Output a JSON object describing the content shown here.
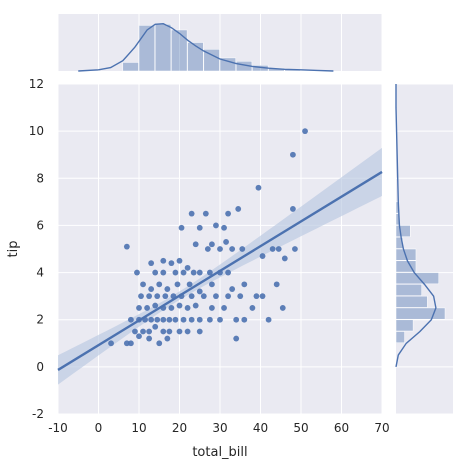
{
  "chart_data": {
    "type": "scatter",
    "style": "seaborn-darkgrid-jointplot-regression",
    "xlabel": "total_bill",
    "ylabel": "tip",
    "xlim": [
      -10,
      70
    ],
    "ylim": [
      -2,
      12
    ],
    "xticks": [
      -10,
      0,
      10,
      20,
      30,
      40,
      50,
      60,
      70
    ],
    "yticks": [
      -2,
      0,
      2,
      4,
      6,
      8,
      10,
      12
    ],
    "grid": true,
    "legend": "none",
    "colors": {
      "points": "#4c72b0",
      "line": "#4c72b0",
      "background": "#eaeaf2",
      "grid": "#ffffff",
      "band": "#b9c7e1"
    },
    "regression": {
      "slope": 0.105,
      "intercept": 0.92,
      "ci_halfwidth_at_mean": 0.18,
      "x_mean": 19.8
    },
    "points": [
      [
        51,
        10
      ],
      [
        48,
        9
      ],
      [
        39.5,
        7.6
      ],
      [
        48,
        6.7
      ],
      [
        32,
        6.5
      ],
      [
        23,
        6.5
      ],
      [
        34.5,
        6.7
      ],
      [
        26.5,
        6.5
      ],
      [
        25,
        5.9
      ],
      [
        29,
        6
      ],
      [
        31,
        5.9
      ],
      [
        20.5,
        5.9
      ],
      [
        24,
        5.2
      ],
      [
        28,
        5.2
      ],
      [
        31.5,
        5.3
      ],
      [
        7,
        5.1
      ],
      [
        13,
        4.4
      ],
      [
        16,
        4.5
      ],
      [
        18,
        4.4
      ],
      [
        20,
        4.5
      ],
      [
        22,
        4.2
      ],
      [
        27,
        5
      ],
      [
        30,
        5
      ],
      [
        33,
        5
      ],
      [
        35.5,
        5
      ],
      [
        40.5,
        4.7
      ],
      [
        43,
        5
      ],
      [
        44.5,
        5
      ],
      [
        48.5,
        5
      ],
      [
        46,
        4.6
      ],
      [
        9.5,
        4
      ],
      [
        14,
        4
      ],
      [
        16,
        4
      ],
      [
        19,
        4
      ],
      [
        21,
        4
      ],
      [
        23.5,
        4
      ],
      [
        25,
        4
      ],
      [
        27.5,
        4
      ],
      [
        30,
        4
      ],
      [
        32,
        4
      ],
      [
        11,
        3.5
      ],
      [
        13,
        3.3
      ],
      [
        15,
        3.5
      ],
      [
        17,
        3.3
      ],
      [
        19.5,
        3.5
      ],
      [
        22.5,
        3.5
      ],
      [
        25,
        3.2
      ],
      [
        28,
        3.5
      ],
      [
        33,
        3.3
      ],
      [
        36,
        3.5
      ],
      [
        44,
        3.5
      ],
      [
        10.5,
        3
      ],
      [
        12.5,
        3
      ],
      [
        14.5,
        3
      ],
      [
        16.5,
        3
      ],
      [
        18.5,
        3
      ],
      [
        20.5,
        3
      ],
      [
        23,
        3
      ],
      [
        26,
        3
      ],
      [
        29,
        3
      ],
      [
        32,
        3
      ],
      [
        35,
        3
      ],
      [
        39,
        3
      ],
      [
        40.5,
        3
      ],
      [
        10,
        2.5
      ],
      [
        12,
        2.5
      ],
      [
        14,
        2.6
      ],
      [
        16,
        2.5
      ],
      [
        18,
        2.5
      ],
      [
        20,
        2.6
      ],
      [
        22,
        2.5
      ],
      [
        24,
        2.6
      ],
      [
        28,
        2.5
      ],
      [
        31,
        2.5
      ],
      [
        38,
        2.5
      ],
      [
        8,
        2
      ],
      [
        10,
        2
      ],
      [
        11.5,
        2
      ],
      [
        13,
        2
      ],
      [
        14.5,
        2
      ],
      [
        16,
        2
      ],
      [
        17.5,
        2
      ],
      [
        19,
        2
      ],
      [
        21,
        2
      ],
      [
        23,
        2
      ],
      [
        25,
        2
      ],
      [
        27.5,
        2
      ],
      [
        30,
        2
      ],
      [
        34,
        2
      ],
      [
        36,
        2
      ],
      [
        42,
        2
      ],
      [
        9,
        1.5
      ],
      [
        11,
        1.5
      ],
      [
        12.5,
        1.5
      ],
      [
        14,
        1.7
      ],
      [
        16,
        1.5
      ],
      [
        17.5,
        1.5
      ],
      [
        20,
        1.5
      ],
      [
        22,
        1.5
      ],
      [
        25,
        1.5
      ],
      [
        7,
        1
      ],
      [
        8,
        1
      ],
      [
        3.1,
        1
      ],
      [
        10,
        1.3
      ],
      [
        12.5,
        1.2
      ],
      [
        15,
        1
      ],
      [
        17,
        1.2
      ],
      [
        34,
        1.2
      ],
      [
        45.5,
        2.5
      ]
    ],
    "marginal_x": {
      "bins": [
        [
          6,
          10,
          0.15
        ],
        [
          10,
          14,
          0.8
        ],
        [
          14,
          18,
          0.82
        ],
        [
          18,
          22,
          0.72
        ],
        [
          22,
          26,
          0.5
        ],
        [
          26,
          30,
          0.38
        ],
        [
          30,
          34,
          0.23
        ],
        [
          34,
          38,
          0.17
        ],
        [
          38,
          42,
          0.1
        ],
        [
          42,
          46,
          0.05
        ],
        [
          46,
          50,
          0.03
        ],
        [
          50,
          54,
          0.01
        ]
      ],
      "kde": [
        [
          -5,
          0.0
        ],
        [
          0,
          0.02
        ],
        [
          3,
          0.06
        ],
        [
          6,
          0.18
        ],
        [
          9,
          0.42
        ],
        [
          12,
          0.72
        ],
        [
          14,
          0.82
        ],
        [
          16,
          0.83
        ],
        [
          18,
          0.76
        ],
        [
          20,
          0.66
        ],
        [
          22,
          0.54
        ],
        [
          24,
          0.44
        ],
        [
          26,
          0.35
        ],
        [
          28,
          0.28
        ],
        [
          30,
          0.21
        ],
        [
          34,
          0.13
        ],
        [
          38,
          0.08
        ],
        [
          42,
          0.05
        ],
        [
          46,
          0.03
        ],
        [
          50,
          0.02
        ],
        [
          54,
          0.01
        ],
        [
          58,
          0.0
        ]
      ]
    },
    "marginal_y": {
      "bins": [
        [
          1,
          1.5,
          0.15
        ],
        [
          1.5,
          2,
          0.3
        ],
        [
          2,
          2.5,
          0.86
        ],
        [
          2.5,
          3,
          0.55
        ],
        [
          3,
          3.5,
          0.45
        ],
        [
          3.5,
          4,
          0.75
        ],
        [
          4,
          4.5,
          0.35
        ],
        [
          4.5,
          5,
          0.35
        ],
        [
          5,
          5.5,
          0.12
        ],
        [
          5.5,
          6,
          0.25
        ],
        [
          6,
          6.5,
          0.06
        ],
        [
          6.5,
          7,
          0.04
        ]
      ],
      "kde": [
        [
          0,
          0.0
        ],
        [
          0.5,
          0.04
        ],
        [
          1,
          0.18
        ],
        [
          1.5,
          0.42
        ],
        [
          2,
          0.62
        ],
        [
          2.5,
          0.7
        ],
        [
          3,
          0.66
        ],
        [
          3.5,
          0.5
        ],
        [
          4,
          0.32
        ],
        [
          4.5,
          0.2
        ],
        [
          5,
          0.13
        ],
        [
          5.5,
          0.09
        ],
        [
          6,
          0.06
        ],
        [
          7,
          0.04
        ],
        [
          8,
          0.03
        ],
        [
          9,
          0.02
        ],
        [
          10,
          0.01
        ],
        [
          11,
          0.0
        ],
        [
          12,
          0.0
        ]
      ]
    }
  }
}
